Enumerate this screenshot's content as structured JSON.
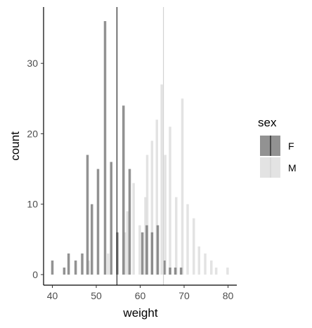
{
  "chart_data": {
    "type": "bar",
    "title": "",
    "xlabel": "weight",
    "ylabel": "count",
    "xlim": [
      38,
      82
    ],
    "ylim": [
      -1.5,
      38
    ],
    "x_ticks": [
      40,
      50,
      60,
      70,
      80
    ],
    "y_ticks": [
      0,
      10,
      20,
      30
    ],
    "grid": false,
    "legend": {
      "title": "sex",
      "placement": "right",
      "entries": [
        {
          "name": "F",
          "color": "#6e6e6e"
        },
        {
          "name": "M",
          "color": "#d9d9d9"
        }
      ]
    },
    "series": [
      {
        "name": "F",
        "color": "#6e6e6e",
        "opacity": 0.75,
        "mean": 54.7,
        "mean_line_color": "#000000",
        "x": [
          40,
          42.7,
          43.7,
          45.3,
          46.8,
          48,
          49,
          50.4,
          52,
          53.4,
          54.8,
          56.2,
          57.6,
          59.2,
          60.5,
          61.5,
          62.7,
          64,
          65.5,
          66.8,
          68,
          69.3
        ],
        "values": [
          2,
          1,
          3,
          2,
          3,
          17,
          10,
          15,
          36,
          16,
          6,
          24,
          15,
          0,
          6,
          7,
          6,
          7,
          2,
          1,
          1,
          1
        ]
      },
      {
        "name": "M",
        "color": "#d9d9d9",
        "opacity": 0.75,
        "mean": 65.3,
        "mean_line_color": "#cccccc",
        "x": [
          48.3,
          52.7,
          56.5,
          57.1,
          58.5,
          59.9,
          61.2,
          61.6,
          62.7,
          63.8,
          64.9,
          65.7,
          66.8,
          68.2,
          69.6,
          70.8,
          72.2,
          73.4,
          74.8,
          76.2,
          77.3,
          79.9
        ],
        "values": [
          2,
          3,
          6,
          9,
          13,
          7,
          11,
          17,
          19,
          22,
          27,
          17,
          21,
          11,
          25,
          10,
          8,
          4,
          3,
          2,
          1,
          1
        ]
      }
    ]
  }
}
